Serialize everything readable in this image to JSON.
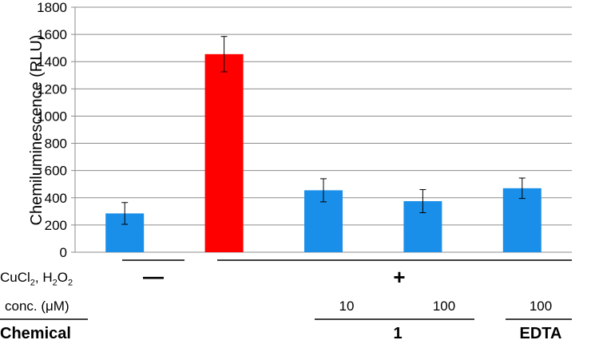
{
  "chart_data": {
    "type": "bar",
    "ylabel": "Chemiluminescence (RLU)",
    "ylim": [
      0,
      1800
    ],
    "yticks": [
      0,
      200,
      400,
      600,
      800,
      1000,
      1200,
      1400,
      1600,
      1800
    ],
    "grid": true,
    "bars": [
      {
        "value": 285,
        "error": 80,
        "color": "#1a8fea"
      },
      {
        "value": 1455,
        "error": 130,
        "color": "#ff0000"
      },
      {
        "value": 455,
        "error": 85,
        "color": "#1a8fea"
      },
      {
        "value": 375,
        "error": 85,
        "color": "#1a8fea"
      },
      {
        "value": 470,
        "error": 75,
        "color": "#1a8fea"
      }
    ]
  },
  "table": {
    "row1_label": "CuCl",
    "row1_sub1": "2",
    "row1_sep": ", H",
    "row1_sub2": "2",
    "row1_tail": "O",
    "row1_sub3": "2",
    "minus": "—",
    "plus": "+",
    "conc_label": "conc. (μM)",
    "conc_values": [
      "10",
      "100",
      "100"
    ],
    "chemical_label": "Chemical",
    "chemical_1": "1",
    "chemical_edta": "EDTA"
  }
}
